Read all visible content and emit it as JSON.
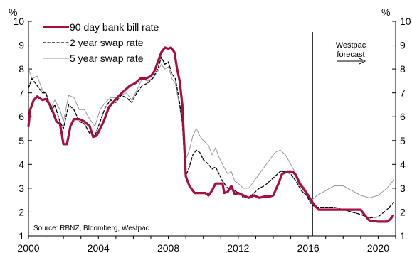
{
  "chart_data": {
    "type": "line",
    "x_range": [
      2000,
      2021
    ],
    "xticks": [
      "2000",
      "2004",
      "2008",
      "2012",
      "2016",
      "2020"
    ],
    "ylim": [
      1,
      10
    ],
    "yticks": [
      "1",
      "2",
      "3",
      "4",
      "5",
      "6",
      "7",
      "8",
      "9",
      "10"
    ],
    "yunit_left": "%",
    "yunit_right": "%",
    "grid": false,
    "legend_position": "top-left",
    "series": [
      {
        "name": "90 day bank bill rate",
        "color": "#a50e3e",
        "style": "solid-thick",
        "points": [
          [
            2000.0,
            5.6
          ],
          [
            2000.1,
            6.3
          ],
          [
            2000.3,
            6.7
          ],
          [
            2000.5,
            6.85
          ],
          [
            2000.8,
            6.7
          ],
          [
            2001.0,
            6.75
          ],
          [
            2001.3,
            6.4
          ],
          [
            2001.6,
            5.8
          ],
          [
            2001.8,
            5.7
          ],
          [
            2001.9,
            5.3
          ],
          [
            2002.0,
            4.85
          ],
          [
            2002.2,
            4.85
          ],
          [
            2002.4,
            5.6
          ],
          [
            2002.6,
            5.9
          ],
          [
            2002.9,
            5.9
          ],
          [
            2003.2,
            5.8
          ],
          [
            2003.5,
            5.6
          ],
          [
            2003.7,
            5.15
          ],
          [
            2003.9,
            5.2
          ],
          [
            2004.1,
            5.5
          ],
          [
            2004.3,
            5.8
          ],
          [
            2004.6,
            6.4
          ],
          [
            2004.9,
            6.65
          ],
          [
            2005.2,
            6.9
          ],
          [
            2005.5,
            7.1
          ],
          [
            2005.8,
            7.3
          ],
          [
            2006.1,
            7.4
          ],
          [
            2006.4,
            7.6
          ],
          [
            2006.7,
            7.6
          ],
          [
            2007.0,
            7.7
          ],
          [
            2007.2,
            7.9
          ],
          [
            2007.4,
            8.3
          ],
          [
            2007.6,
            8.7
          ],
          [
            2007.8,
            8.9
          ],
          [
            2008.0,
            8.85
          ],
          [
            2008.15,
            8.9
          ],
          [
            2008.35,
            8.7
          ],
          [
            2008.5,
            8.0
          ],
          [
            2008.65,
            7.5
          ],
          [
            2008.8,
            6.5
          ],
          [
            2008.9,
            5.0
          ],
          [
            2009.0,
            3.5
          ],
          [
            2009.2,
            3.1
          ],
          [
            2009.5,
            2.8
          ],
          [
            2009.8,
            2.8
          ],
          [
            2010.1,
            2.8
          ],
          [
            2010.3,
            2.7
          ],
          [
            2010.5,
            2.9
          ],
          [
            2010.7,
            3.2
          ],
          [
            2010.9,
            3.2
          ],
          [
            2011.1,
            3.2
          ],
          [
            2011.2,
            2.8
          ],
          [
            2011.4,
            2.85
          ],
          [
            2011.6,
            3.1
          ],
          [
            2011.8,
            2.75
          ],
          [
            2012.0,
            2.8
          ],
          [
            2012.3,
            2.7
          ],
          [
            2012.6,
            2.6
          ],
          [
            2012.9,
            2.7
          ],
          [
            2013.2,
            2.6
          ],
          [
            2013.5,
            2.65
          ],
          [
            2013.8,
            2.65
          ],
          [
            2014.0,
            2.7
          ],
          [
            2014.3,
            3.2
          ],
          [
            2014.5,
            3.6
          ],
          [
            2014.8,
            3.7
          ],
          [
            2015.1,
            3.7
          ],
          [
            2015.3,
            3.55
          ],
          [
            2015.5,
            3.2
          ],
          [
            2015.8,
            2.9
          ],
          [
            2016.0,
            2.7
          ],
          [
            2016.2,
            2.45
          ],
          [
            2016.4,
            2.25
          ],
          [
            2016.6,
            2.1
          ],
          [
            2017.0,
            2.1
          ],
          [
            2018.0,
            2.1
          ],
          [
            2019.0,
            2.1
          ],
          [
            2019.2,
            1.9
          ],
          [
            2019.5,
            1.65
          ],
          [
            2020.0,
            1.6
          ],
          [
            2020.5,
            1.6
          ],
          [
            2020.7,
            1.7
          ],
          [
            2020.85,
            1.85
          ]
        ]
      },
      {
        "name": "2 year swap rate",
        "color": "#000000",
        "style": "dashed",
        "points": [
          [
            2000.0,
            7.2
          ],
          [
            2000.2,
            7.6
          ],
          [
            2000.5,
            7.3
          ],
          [
            2000.8,
            7.0
          ],
          [
            2001.0,
            7.0
          ],
          [
            2001.3,
            6.2
          ],
          [
            2001.5,
            6.5
          ],
          [
            2001.8,
            5.8
          ],
          [
            2002.0,
            5.5
          ],
          [
            2002.3,
            6.5
          ],
          [
            2002.6,
            6.3
          ],
          [
            2002.9,
            5.8
          ],
          [
            2003.2,
            5.7
          ],
          [
            2003.5,
            5.3
          ],
          [
            2003.8,
            5.2
          ],
          [
            2004.1,
            5.8
          ],
          [
            2004.4,
            6.4
          ],
          [
            2004.7,
            6.7
          ],
          [
            2005.0,
            6.6
          ],
          [
            2005.3,
            6.9
          ],
          [
            2005.6,
            6.8
          ],
          [
            2005.9,
            6.6
          ],
          [
            2006.2,
            7.0
          ],
          [
            2006.5,
            7.3
          ],
          [
            2006.8,
            7.4
          ],
          [
            2007.1,
            7.6
          ],
          [
            2007.4,
            8.0
          ],
          [
            2007.6,
            8.5
          ],
          [
            2007.8,
            8.2
          ],
          [
            2008.0,
            8.3
          ],
          [
            2008.2,
            7.8
          ],
          [
            2008.4,
            7.6
          ],
          [
            2008.6,
            6.8
          ],
          [
            2008.8,
            5.8
          ],
          [
            2008.9,
            4.4
          ],
          [
            2009.0,
            3.5
          ],
          [
            2009.2,
            3.9
          ],
          [
            2009.4,
            4.4
          ],
          [
            2009.6,
            4.6
          ],
          [
            2009.8,
            4.5
          ],
          [
            2010.0,
            4.2
          ],
          [
            2010.3,
            4.0
          ],
          [
            2010.5,
            3.8
          ],
          [
            2010.7,
            3.9
          ],
          [
            2010.9,
            3.6
          ],
          [
            2011.1,
            3.3
          ],
          [
            2011.4,
            3.0
          ],
          [
            2011.6,
            3.0
          ],
          [
            2011.8,
            2.9
          ],
          [
            2012.0,
            2.8
          ],
          [
            2012.3,
            2.6
          ],
          [
            2012.6,
            2.6
          ],
          [
            2012.9,
            2.8
          ],
          [
            2013.2,
            3.0
          ],
          [
            2013.5,
            3.1
          ],
          [
            2013.8,
            3.3
          ],
          [
            2014.1,
            3.5
          ],
          [
            2014.4,
            3.7
          ],
          [
            2014.7,
            3.7
          ],
          [
            2015.0,
            3.6
          ],
          [
            2015.3,
            3.3
          ],
          [
            2015.6,
            2.9
          ],
          [
            2015.9,
            2.7
          ],
          [
            2016.2,
            2.3
          ],
          [
            2016.5,
            2.2
          ],
          [
            2017.0,
            2.2
          ],
          [
            2017.5,
            2.2
          ],
          [
            2018.0,
            2.1
          ],
          [
            2018.5,
            2.0
          ],
          [
            2019.0,
            1.9
          ],
          [
            2019.5,
            1.75
          ],
          [
            2020.0,
            1.8
          ],
          [
            2020.5,
            2.1
          ],
          [
            2020.9,
            2.4
          ]
        ]
      },
      {
        "name": "5 year swap rate",
        "color": "#999999",
        "style": "solid-thin",
        "points": [
          [
            2000.0,
            8.0
          ],
          [
            2000.2,
            7.6
          ],
          [
            2000.5,
            7.7
          ],
          [
            2000.8,
            7.1
          ],
          [
            2001.0,
            7.0
          ],
          [
            2001.3,
            6.4
          ],
          [
            2001.5,
            6.7
          ],
          [
            2001.8,
            6.3
          ],
          [
            2002.0,
            5.8
          ],
          [
            2002.3,
            6.9
          ],
          [
            2002.6,
            6.8
          ],
          [
            2002.9,
            6.3
          ],
          [
            2003.2,
            6.3
          ],
          [
            2003.5,
            5.9
          ],
          [
            2003.8,
            5.6
          ],
          [
            2004.1,
            6.3
          ],
          [
            2004.4,
            6.6
          ],
          [
            2004.7,
            6.8
          ],
          [
            2005.0,
            6.8
          ],
          [
            2005.3,
            6.9
          ],
          [
            2005.6,
            7.0
          ],
          [
            2005.9,
            6.7
          ],
          [
            2006.2,
            7.1
          ],
          [
            2006.5,
            7.6
          ],
          [
            2006.8,
            7.5
          ],
          [
            2007.1,
            7.6
          ],
          [
            2007.4,
            7.9
          ],
          [
            2007.6,
            8.2
          ],
          [
            2007.8,
            8.0
          ],
          [
            2008.0,
            8.1
          ],
          [
            2008.2,
            7.6
          ],
          [
            2008.4,
            7.4
          ],
          [
            2008.6,
            6.6
          ],
          [
            2008.8,
            5.7
          ],
          [
            2008.9,
            4.6
          ],
          [
            2009.0,
            4.2
          ],
          [
            2009.2,
            4.6
          ],
          [
            2009.4,
            5.2
          ],
          [
            2009.6,
            5.5
          ],
          [
            2009.8,
            5.2
          ],
          [
            2010.0,
            5.0
          ],
          [
            2010.3,
            4.8
          ],
          [
            2010.5,
            4.4
          ],
          [
            2010.7,
            4.7
          ],
          [
            2010.9,
            4.3
          ],
          [
            2011.1,
            4.0
          ],
          [
            2011.4,
            3.6
          ],
          [
            2011.6,
            3.7
          ],
          [
            2011.8,
            3.3
          ],
          [
            2012.0,
            3.2
          ],
          [
            2012.3,
            3.0
          ],
          [
            2012.6,
            3.0
          ],
          [
            2012.9,
            3.3
          ],
          [
            2013.2,
            3.6
          ],
          [
            2013.5,
            3.9
          ],
          [
            2013.8,
            4.2
          ],
          [
            2014.1,
            4.5
          ],
          [
            2014.4,
            4.6
          ],
          [
            2014.7,
            4.4
          ],
          [
            2015.0,
            4.0
          ],
          [
            2015.3,
            3.6
          ],
          [
            2015.6,
            3.2
          ],
          [
            2015.9,
            2.9
          ],
          [
            2016.2,
            2.5
          ],
          [
            2016.5,
            2.7
          ],
          [
            2017.0,
            2.9
          ],
          [
            2017.5,
            3.1
          ],
          [
            2018.0,
            3.1
          ],
          [
            2018.5,
            2.9
          ],
          [
            2019.0,
            2.7
          ],
          [
            2019.5,
            2.6
          ],
          [
            2020.0,
            2.7
          ],
          [
            2020.5,
            3.0
          ],
          [
            2020.9,
            3.35
          ]
        ]
      }
    ],
    "forecast_line_x": 2016.25,
    "annotations": [
      {
        "lines": [
          "Westpac",
          "forecast"
        ],
        "arrow": "right"
      }
    ],
    "source": "Source: RBNZ, Bloomberg, Westpac"
  }
}
